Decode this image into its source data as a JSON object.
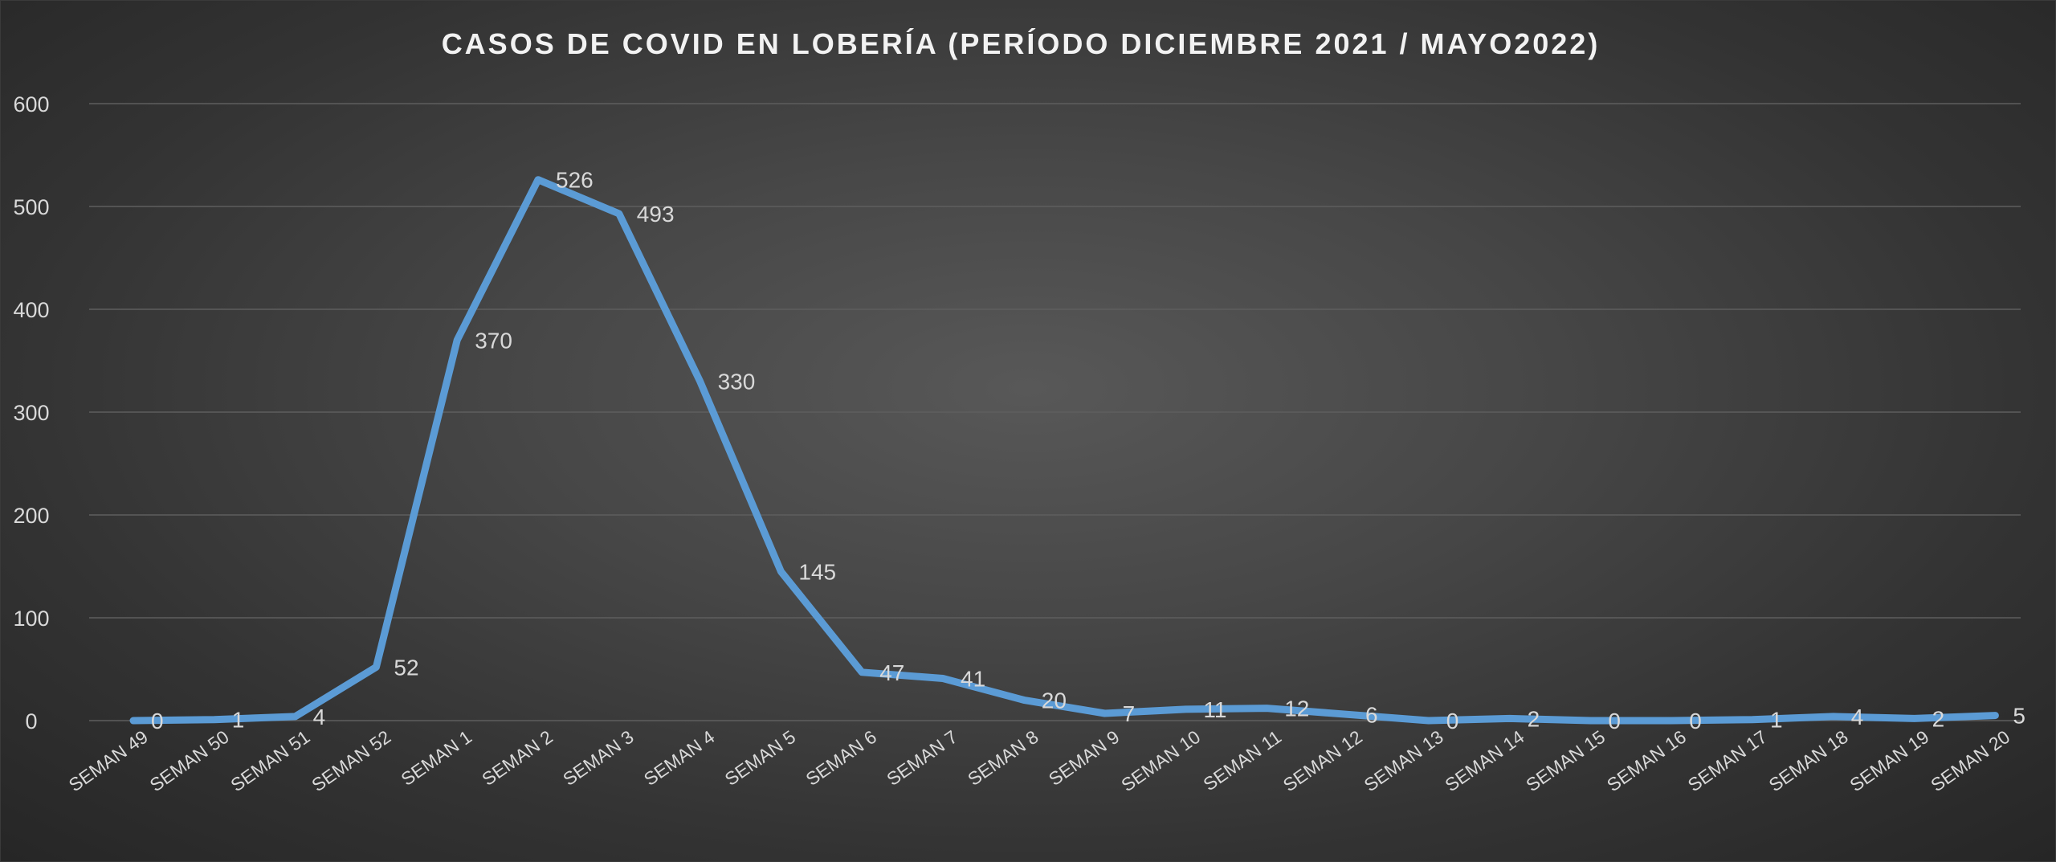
{
  "chart_data": {
    "type": "line",
    "title": "CASOS DE COVID EN LOBERÍA (PERÍODO DICIEMBRE 2021 / MAYO2022)",
    "xlabel": "",
    "ylabel": "",
    "ylim": [
      0,
      600
    ],
    "yticks": [
      "0",
      "100",
      "200",
      "300",
      "400",
      "500",
      "600"
    ],
    "grid": true,
    "legend": "none",
    "categories": [
      "SEMAN 49",
      "SEMAN 50",
      "SEMAN 51",
      "SEMAN 52",
      "SEMAN 1",
      "SEMAN 2",
      "SEMAN 3",
      "SEMAN 4",
      "SEMAN 5",
      "SEMAN 6",
      "SEMAN 7",
      "SEMAN 8",
      "SEMAN 9",
      "SEMAN 10",
      "SEMAN 11",
      "SEMAN 12",
      "SEMAN 13",
      "SEMAN 14",
      "SEMAN 15",
      "SEMAN 16",
      "SEMAN 17",
      "SEMAN 18",
      "SEMAN 19",
      "SEMAN 20"
    ],
    "series": [
      {
        "values": [
          0,
          1,
          4,
          52,
          370,
          526,
          493,
          330,
          145,
          47,
          41,
          20,
          7,
          11,
          12,
          6,
          0,
          2,
          0,
          0,
          1,
          4,
          2,
          5
        ],
        "labels": [
          "0",
          "1",
          "4",
          "52",
          "370",
          "526",
          "493",
          "330",
          "145",
          "47",
          "41",
          "20",
          "7",
          "11",
          "12",
          "6",
          "0",
          "2",
          "0",
          "0",
          "1",
          "4",
          "2",
          "5"
        ],
        "color": "#5b9bd5"
      }
    ]
  }
}
